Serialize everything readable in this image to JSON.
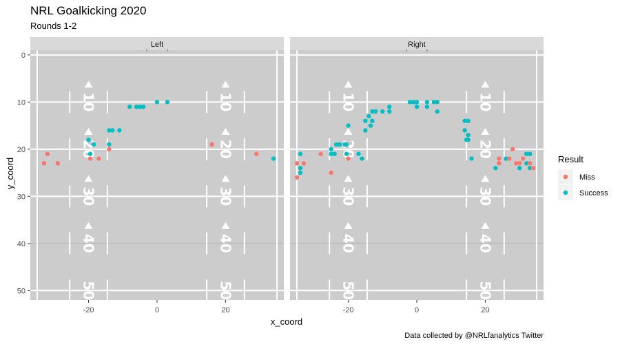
{
  "chart_data": {
    "type": "scatter",
    "title": "NRL Goalkicking 2020",
    "subtitle": "Rounds 1-2",
    "xlabel": "x_coord",
    "ylabel": "y_coord",
    "caption": "Data collected by @NRLfanalytics Twitter",
    "xlim": [
      -37,
      37
    ],
    "ylim": [
      -1,
      52
    ],
    "y_reversed": true,
    "x_ticks": [
      -20,
      0,
      20
    ],
    "y_ticks": [
      0,
      10,
      20,
      30,
      40,
      50
    ],
    "field_yard_numbers": [
      "10",
      "20",
      "30",
      "40",
      "50"
    ],
    "legend": {
      "title": "Result",
      "position": "right",
      "entries": [
        {
          "label": "Miss",
          "color": "#F8766D"
        },
        {
          "label": "Success",
          "color": "#00BFC4"
        }
      ]
    },
    "panel_background": "#CCCCCC",
    "strip_background": "#D9D9D9",
    "panels": [
      {
        "label": "Left",
        "points": [
          {
            "x": -33,
            "y": 23,
            "result": "Miss"
          },
          {
            "x": -32,
            "y": 21,
            "result": "Miss"
          },
          {
            "x": -29,
            "y": 23,
            "result": "Miss"
          },
          {
            "x": -20,
            "y": 18,
            "result": "Success"
          },
          {
            "x": -19.5,
            "y": 21,
            "result": "Success"
          },
          {
            "x": -19.5,
            "y": 22,
            "result": "Miss"
          },
          {
            "x": -18.5,
            "y": 19,
            "result": "Success"
          },
          {
            "x": -17,
            "y": 22,
            "result": "Miss"
          },
          {
            "x": -14,
            "y": 20,
            "result": "Miss"
          },
          {
            "x": -14,
            "y": 19,
            "result": "Success"
          },
          {
            "x": -14,
            "y": 16,
            "result": "Success"
          },
          {
            "x": -13,
            "y": 16,
            "result": "Success"
          },
          {
            "x": -11,
            "y": 16,
            "result": "Success"
          },
          {
            "x": -8,
            "y": 11,
            "result": "Success"
          },
          {
            "x": -6,
            "y": 11,
            "result": "Success"
          },
          {
            "x": -5,
            "y": 11,
            "result": "Success"
          },
          {
            "x": -4,
            "y": 11,
            "result": "Success"
          },
          {
            "x": 0,
            "y": 10,
            "result": "Success"
          },
          {
            "x": 3,
            "y": 10,
            "result": "Success"
          },
          {
            "x": 16,
            "y": 19,
            "result": "Miss"
          },
          {
            "x": 29,
            "y": 21,
            "result": "Miss"
          },
          {
            "x": 34,
            "y": 22,
            "result": "Success"
          }
        ]
      },
      {
        "label": "Right",
        "points": [
          {
            "x": -35,
            "y": 23,
            "result": "Miss"
          },
          {
            "x": -35,
            "y": 26,
            "result": "Miss"
          },
          {
            "x": -34,
            "y": 21,
            "result": "Success"
          },
          {
            "x": -34,
            "y": 24,
            "result": "Success"
          },
          {
            "x": -34,
            "y": 25,
            "result": "Success"
          },
          {
            "x": -33,
            "y": 23,
            "result": "Miss"
          },
          {
            "x": -28,
            "y": 21,
            "result": "Miss"
          },
          {
            "x": -25,
            "y": 20,
            "result": "Success"
          },
          {
            "x": -25,
            "y": 21,
            "result": "Success"
          },
          {
            "x": -25,
            "y": 25,
            "result": "Miss"
          },
          {
            "x": -24,
            "y": 21,
            "result": "Success"
          },
          {
            "x": -23.5,
            "y": 19,
            "result": "Success"
          },
          {
            "x": -22.5,
            "y": 19,
            "result": "Success"
          },
          {
            "x": -21,
            "y": 19,
            "result": "Success"
          },
          {
            "x": -20.5,
            "y": 19,
            "result": "Success"
          },
          {
            "x": -20.5,
            "y": 21,
            "result": "Success"
          },
          {
            "x": -20,
            "y": 15,
            "result": "Success"
          },
          {
            "x": -20,
            "y": 22,
            "result": "Miss"
          },
          {
            "x": -17,
            "y": 21,
            "result": "Success"
          },
          {
            "x": -16,
            "y": 22,
            "result": "Success"
          },
          {
            "x": -15,
            "y": 14,
            "result": "Success"
          },
          {
            "x": -15,
            "y": 16,
            "result": "Success"
          },
          {
            "x": -14,
            "y": 13,
            "result": "Success"
          },
          {
            "x": -13.5,
            "y": 15,
            "result": "Success"
          },
          {
            "x": -13,
            "y": 14,
            "result": "Success"
          },
          {
            "x": -13,
            "y": 12,
            "result": "Success"
          },
          {
            "x": -12,
            "y": 12,
            "result": "Success"
          },
          {
            "x": -10,
            "y": 12,
            "result": "Success"
          },
          {
            "x": -8,
            "y": 11,
            "result": "Success"
          },
          {
            "x": -8,
            "y": 12,
            "result": "Success"
          },
          {
            "x": -2,
            "y": 10,
            "result": "Success"
          },
          {
            "x": -1,
            "y": 10,
            "result": "Success"
          },
          {
            "x": 0,
            "y": 10,
            "result": "Success"
          },
          {
            "x": 0,
            "y": 11,
            "result": "Success"
          },
          {
            "x": 3,
            "y": 10,
            "result": "Success"
          },
          {
            "x": 3,
            "y": 11,
            "result": "Success"
          },
          {
            "x": 5,
            "y": 10,
            "result": "Success"
          },
          {
            "x": 6,
            "y": 10,
            "result": "Success"
          },
          {
            "x": 6,
            "y": 12,
            "result": "Success"
          },
          {
            "x": 14,
            "y": 14,
            "result": "Success"
          },
          {
            "x": 14,
            "y": 16,
            "result": "Success"
          },
          {
            "x": 14.5,
            "y": 18,
            "result": "Success"
          },
          {
            "x": 15,
            "y": 14,
            "result": "Success"
          },
          {
            "x": 15,
            "y": 17,
            "result": "Success"
          },
          {
            "x": 15,
            "y": 18,
            "result": "Success"
          },
          {
            "x": 16,
            "y": 22,
            "result": "Success"
          },
          {
            "x": 23,
            "y": 24,
            "result": "Success"
          },
          {
            "x": 24,
            "y": 22,
            "result": "Miss"
          },
          {
            "x": 24,
            "y": 23,
            "result": "Miss"
          },
          {
            "x": 26,
            "y": 22,
            "result": "Success"
          },
          {
            "x": 27,
            "y": 22,
            "result": "Miss"
          },
          {
            "x": 28,
            "y": 20,
            "result": "Miss"
          },
          {
            "x": 29,
            "y": 23,
            "result": "Miss"
          },
          {
            "x": 30,
            "y": 24,
            "result": "Success"
          },
          {
            "x": 30,
            "y": 23,
            "result": "Miss"
          },
          {
            "x": 31,
            "y": 22,
            "result": "Miss"
          },
          {
            "x": 32,
            "y": 21,
            "result": "Success"
          },
          {
            "x": 32,
            "y": 23,
            "result": "Success"
          },
          {
            "x": 33,
            "y": 21,
            "result": "Success"
          },
          {
            "x": 33,
            "y": 23,
            "result": "Miss"
          },
          {
            "x": 33,
            "y": 24,
            "result": "Success"
          },
          {
            "x": 34,
            "y": 24,
            "result": "Miss"
          }
        ]
      }
    ]
  }
}
